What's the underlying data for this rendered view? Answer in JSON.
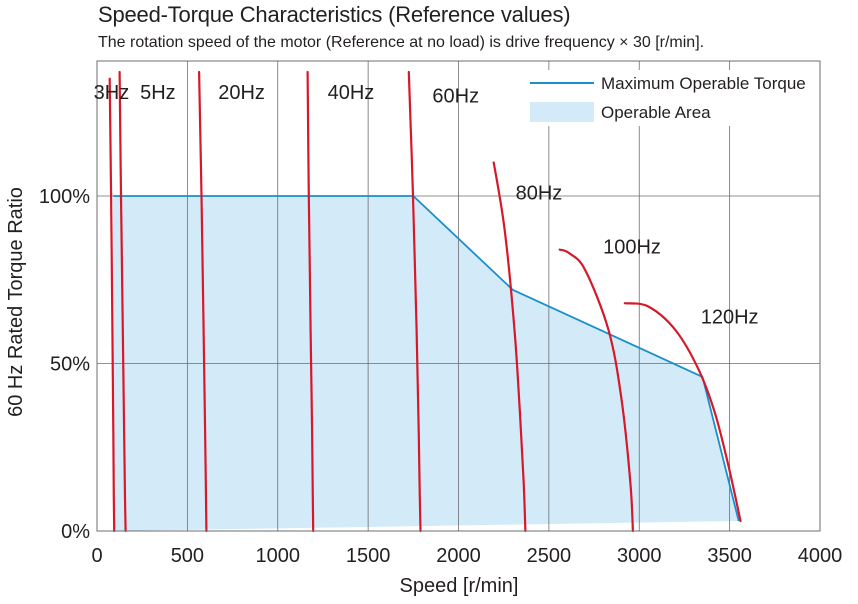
{
  "chart_data": {
    "type": "line",
    "title": "Speed-Torque Characteristics (Reference values)",
    "subtitle": "The rotation speed of the motor (Reference at no load) is drive frequency × 30 [r/min].",
    "xlabel": "Speed [r/min]",
    "ylabel": "60 Hz Rated Torque Ratio",
    "xlim": [
      0,
      4000
    ],
    "ylim": [
      0,
      150
    ],
    "x_ticks": [
      0,
      500,
      1000,
      1500,
      2000,
      2500,
      3000,
      3500,
      4000
    ],
    "x_tick_labels": [
      "0",
      "500",
      "1000",
      "1500",
      "2000",
      "2500",
      "3000",
      "3500",
      "4000"
    ],
    "y_ticks": [
      0,
      50,
      100
    ],
    "y_tick_labels": [
      "0%",
      "50%",
      "100%"
    ],
    "grid": true,
    "legend": {
      "placement": "top-right",
      "entries": [
        {
          "label": "Maximum Operable Torque",
          "kind": "line",
          "color": "#1a8fc9"
        },
        {
          "label": "Operable Area",
          "kind": "fill",
          "color": "#d3ebf8"
        }
      ]
    },
    "operable_area": {
      "name": "Operable Area",
      "color": "#d3ebf8",
      "x": [
        90,
        90,
        1750,
        2300,
        3350,
        3550,
        90
      ],
      "y": [
        0,
        100,
        100,
        72,
        46,
        3,
        0
      ]
    },
    "max_torque": {
      "name": "Maximum Operable Torque",
      "color": "#1a8fc9",
      "x": [
        90,
        1750,
        2300,
        3350,
        3550
      ],
      "y": [
        100,
        100,
        72,
        46,
        3
      ]
    },
    "frequency_curves": [
      {
        "label": "3Hz",
        "color": "#d7182a",
        "x": [
          70,
          78,
          85,
          90,
          93,
          95
        ],
        "y": [
          135,
          100,
          60,
          30,
          10,
          0
        ]
      },
      {
        "label": "5Hz",
        "color": "#d7182a",
        "x": [
          125,
          133,
          143,
          150,
          155,
          158
        ],
        "y": [
          137,
          100,
          60,
          30,
          10,
          0
        ]
      },
      {
        "label": "20Hz",
        "color": "#d7182a",
        "x": [
          565,
          578,
          590,
          598,
          603,
          605
        ],
        "y": [
          137,
          100,
          60,
          30,
          10,
          0
        ]
      },
      {
        "label": "40Hz",
        "color": "#d7182a",
        "x": [
          1165,
          1172,
          1182,
          1190,
          1194,
          1196
        ],
        "y": [
          137,
          100,
          60,
          30,
          10,
          0
        ]
      },
      {
        "label": "60Hz",
        "color": "#d7182a",
        "x": [
          1725,
          1748,
          1768,
          1780,
          1786,
          1790
        ],
        "y": [
          137,
          100,
          60,
          30,
          10,
          0
        ]
      },
      {
        "label": "80Hz",
        "color": "#d7182a",
        "x": [
          2195,
          2255,
          2310,
          2340,
          2360,
          2370
        ],
        "y": [
          110,
          90,
          60,
          35,
          15,
          0
        ]
      },
      {
        "label": "100Hz",
        "color": "#d7182a",
        "x": [
          2560,
          2610,
          2700,
          2830,
          2900,
          2950,
          2965
        ],
        "y": [
          84,
          83,
          78,
          60,
          40,
          15,
          0
        ]
      },
      {
        "label": "120Hz",
        "color": "#d7182a",
        "x": [
          2920,
          3050,
          3200,
          3330,
          3420,
          3500,
          3560
        ],
        "y": [
          68,
          67,
          60,
          48,
          35,
          18,
          3
        ]
      }
    ],
    "curve_labels": [
      {
        "text": "3Hz",
        "x": 80,
        "y": 131
      },
      {
        "text": "5Hz",
        "x": 337,
        "y": 131
      },
      {
        "text": "20Hz",
        "x": 800,
        "y": 131
      },
      {
        "text": "40Hz",
        "x": 1405,
        "y": 131
      },
      {
        "text": "60Hz",
        "x": 1985,
        "y": 130
      },
      {
        "text": "80Hz",
        "x": 2445,
        "y": 101
      },
      {
        "text": "100Hz",
        "x": 2960,
        "y": 85
      },
      {
        "text": "120Hz",
        "x": 3500,
        "y": 64
      }
    ]
  }
}
